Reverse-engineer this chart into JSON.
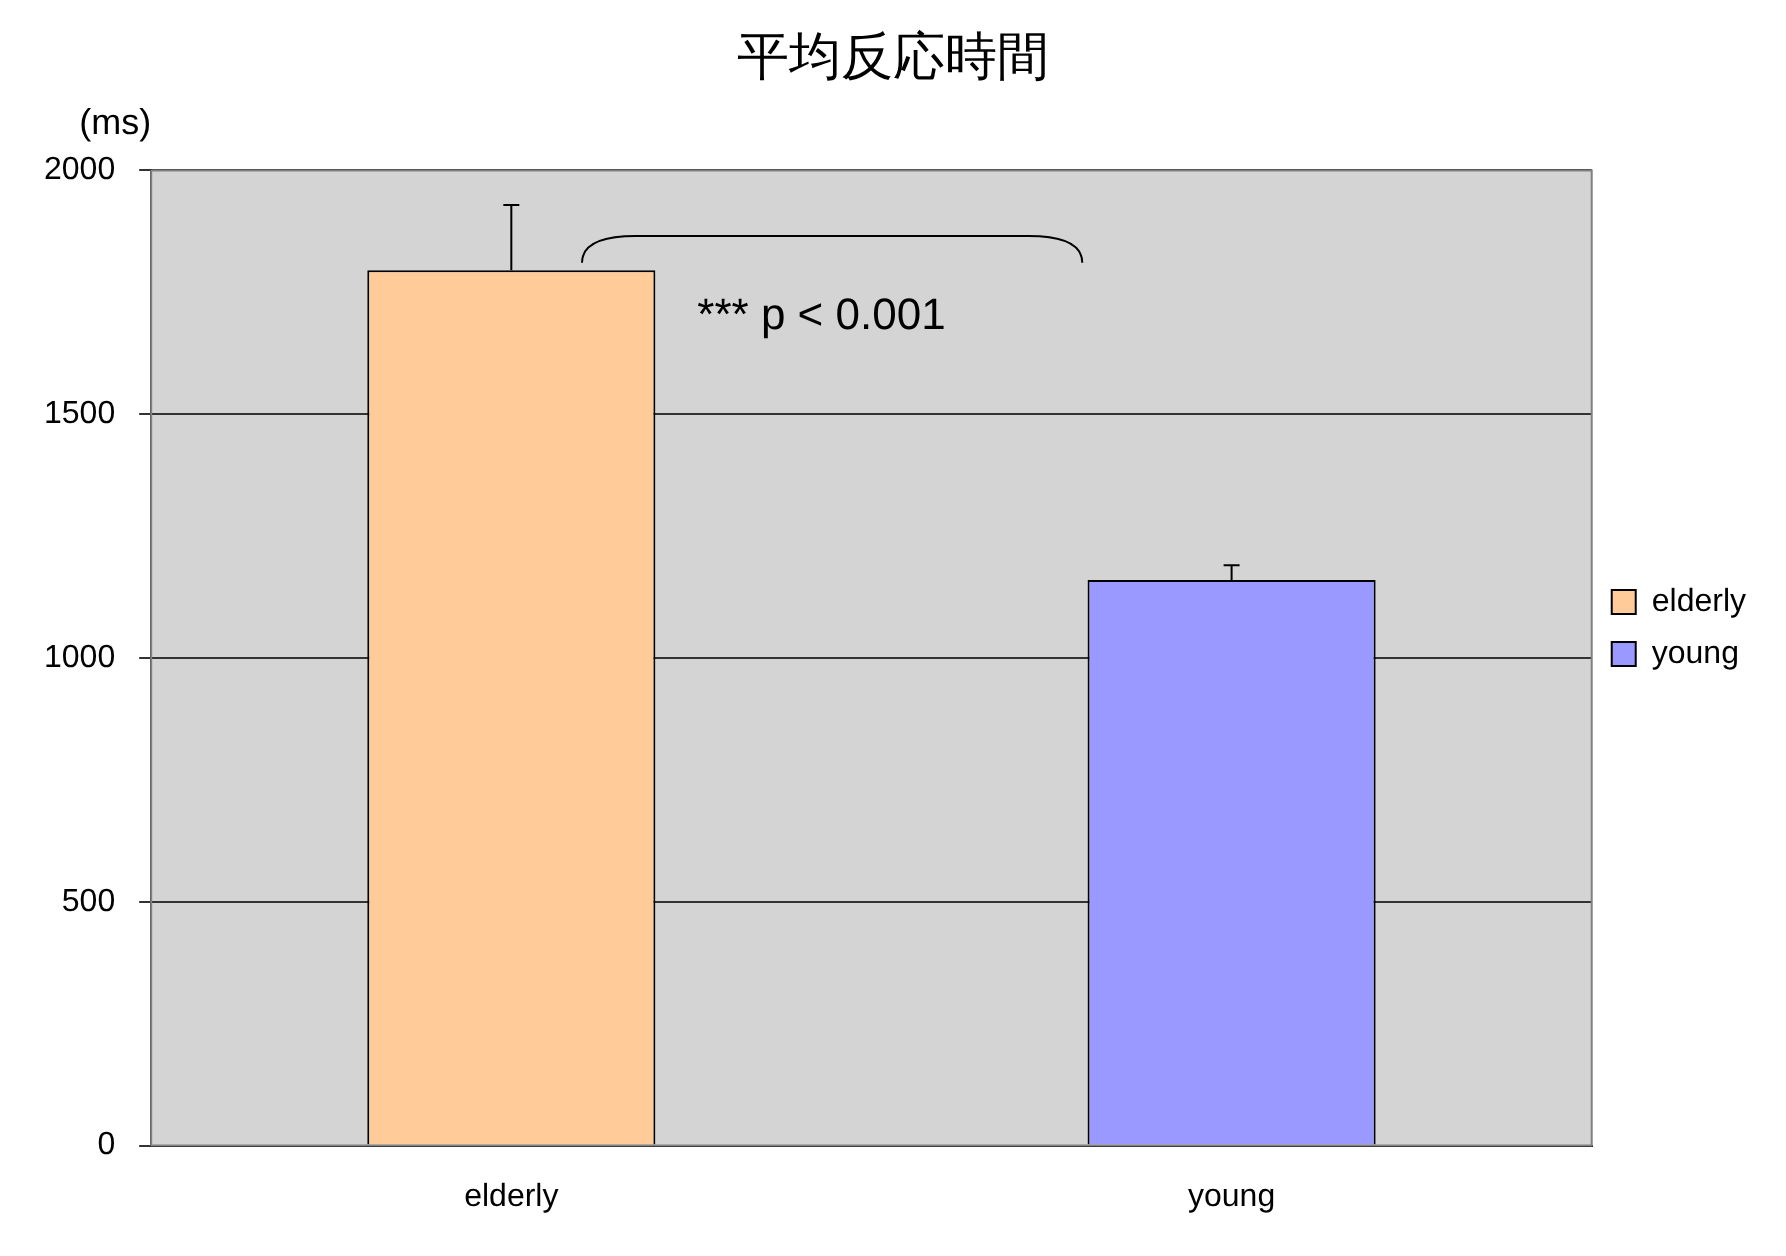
{
  "chart_data": {
    "type": "bar",
    "title": "平均反応時間",
    "ylabel": "(ms)",
    "categories": [
      "elderly",
      "young"
    ],
    "series": [
      {
        "name": "elderly",
        "color": "#ffcc99",
        "values": [
          1795,
          null
        ],
        "errors": [
          [
            1795,
            1929
          ],
          null
        ]
      },
      {
        "name": "young",
        "color": "#9999ff",
        "values": [
          null,
          1160
        ],
        "errors": [
          null,
          [
            1160,
            1190
          ]
        ]
      }
    ],
    "ylim": [
      0,
      2000
    ],
    "yticks": [
      0,
      500,
      1000,
      1500,
      2000
    ],
    "grid": "y",
    "legend": "right",
    "annotations": [
      "*** p < 0.001"
    ]
  }
}
